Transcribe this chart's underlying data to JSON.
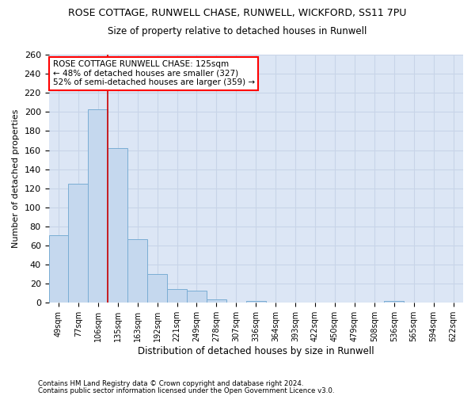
{
  "title1": "ROSE COTTAGE, RUNWELL CHASE, RUNWELL, WICKFORD, SS11 7PU",
  "title2": "Size of property relative to detached houses in Runwell",
  "xlabel": "Distribution of detached houses by size in Runwell",
  "ylabel": "Number of detached properties",
  "categories": [
    "49sqm",
    "77sqm",
    "106sqm",
    "135sqm",
    "163sqm",
    "192sqm",
    "221sqm",
    "249sqm",
    "278sqm",
    "307sqm",
    "336sqm",
    "364sqm",
    "393sqm",
    "422sqm",
    "450sqm",
    "479sqm",
    "508sqm",
    "536sqm",
    "565sqm",
    "594sqm",
    "622sqm"
  ],
  "values": [
    71,
    125,
    203,
    162,
    67,
    30,
    14,
    13,
    4,
    0,
    2,
    0,
    0,
    0,
    0,
    0,
    0,
    2,
    0,
    0,
    0
  ],
  "bar_color": "#c5d8ee",
  "bar_edge_color": "#7aadd4",
  "highlight_label": "ROSE COTTAGE RUNWELL CHASE: 125sqm",
  "annotation_line1": "← 48% of detached houses are smaller (327)",
  "annotation_line2": "52% of semi-detached houses are larger (359) →",
  "vline_color": "#cc0000",
  "vline_position": 2.5,
  "ylim": [
    0,
    260
  ],
  "yticks": [
    0,
    20,
    40,
    60,
    80,
    100,
    120,
    140,
    160,
    180,
    200,
    220,
    240,
    260
  ],
  "grid_color": "#c8d4e8",
  "background_color": "#dce6f5",
  "footer1": "Contains HM Land Registry data © Crown copyright and database right 2024.",
  "footer2": "Contains public sector information licensed under the Open Government Licence v3.0."
}
